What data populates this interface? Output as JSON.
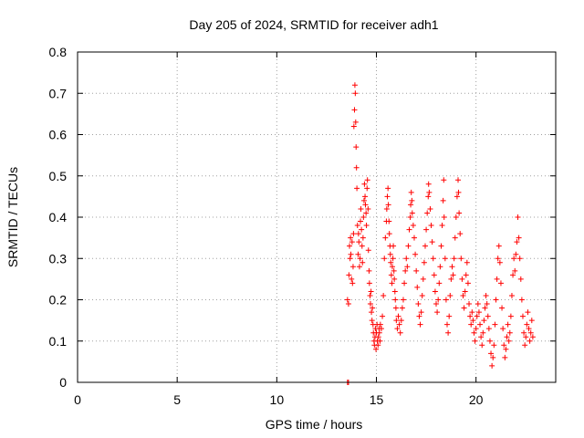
{
  "chart_data": {
    "type": "scatter",
    "title": "Day 205 of 2024, SRMTID for receiver adh1",
    "xlabel": "GPS time / hours",
    "ylabel": "SRMTID / TECUs",
    "xlim": [
      0,
      24
    ],
    "ylim": [
      0,
      0.8
    ],
    "xticks": [
      0,
      5,
      10,
      15,
      20
    ],
    "xtick_labels": [
      "0",
      "5",
      "10",
      "15",
      "20"
    ],
    "yticks": [
      0,
      0.1,
      0.2,
      0.3,
      0.4,
      0.5,
      0.6,
      0.7,
      0.8
    ],
    "ytick_labels": [
      "0",
      "0.1",
      "0.2",
      "0.3",
      "0.4",
      "0.5",
      "0.6",
      "0.7",
      "0.8"
    ],
    "grid": true,
    "marker": "plus",
    "color": "#ff0000",
    "series": [
      {
        "name": "SRMTID",
        "points": [
          [
            13.55,
            0.0
          ],
          [
            13.6,
            0.0
          ],
          [
            13.55,
            0.2
          ],
          [
            13.6,
            0.19
          ],
          [
            13.62,
            0.26
          ],
          [
            13.65,
            0.33
          ],
          [
            13.68,
            0.3
          ],
          [
            13.7,
            0.35
          ],
          [
            13.72,
            0.31
          ],
          [
            13.75,
            0.25
          ],
          [
            13.78,
            0.34
          ],
          [
            13.8,
            0.24
          ],
          [
            13.83,
            0.28
          ],
          [
            13.85,
            0.36
          ],
          [
            13.87,
            0.62
          ],
          [
            13.9,
            0.66
          ],
          [
            13.92,
            0.72
          ],
          [
            13.94,
            0.7
          ],
          [
            13.96,
            0.63
          ],
          [
            13.98,
            0.57
          ],
          [
            14.0,
            0.52
          ],
          [
            14.02,
            0.47
          ],
          [
            14.05,
            0.38
          ],
          [
            14.08,
            0.31
          ],
          [
            14.1,
            0.36
          ],
          [
            14.12,
            0.34
          ],
          [
            14.15,
            0.28
          ],
          [
            14.18,
            0.3
          ],
          [
            14.2,
            0.39
          ],
          [
            14.22,
            0.42
          ],
          [
            14.25,
            0.37
          ],
          [
            14.28,
            0.33
          ],
          [
            14.3,
            0.29
          ],
          [
            14.33,
            0.35
          ],
          [
            14.35,
            0.4
          ],
          [
            14.38,
            0.44
          ],
          [
            14.4,
            0.48
          ],
          [
            14.43,
            0.45
          ],
          [
            14.45,
            0.43
          ],
          [
            14.48,
            0.41
          ],
          [
            14.5,
            0.38
          ],
          [
            14.53,
            0.47
          ],
          [
            14.55,
            0.49
          ],
          [
            14.58,
            0.42
          ],
          [
            14.6,
            0.32
          ],
          [
            14.63,
            0.27
          ],
          [
            14.65,
            0.24
          ],
          [
            14.68,
            0.21
          ],
          [
            14.7,
            0.19
          ],
          [
            14.73,
            0.22
          ],
          [
            14.75,
            0.17
          ],
          [
            14.78,
            0.15
          ],
          [
            14.8,
            0.18
          ],
          [
            14.83,
            0.14
          ],
          [
            14.85,
            0.12
          ],
          [
            14.88,
            0.1
          ],
          [
            14.9,
            0.09
          ],
          [
            14.93,
            0.11
          ],
          [
            14.95,
            0.13
          ],
          [
            14.98,
            0.08
          ],
          [
            15.0,
            0.12
          ],
          [
            15.03,
            0.14
          ],
          [
            15.05,
            0.1
          ],
          [
            15.08,
            0.09
          ],
          [
            15.1,
            0.11
          ],
          [
            15.13,
            0.13
          ],
          [
            15.15,
            0.12
          ],
          [
            15.18,
            0.1
          ],
          [
            15.2,
            0.14
          ],
          [
            15.25,
            0.13
          ],
          [
            15.3,
            0.16
          ],
          [
            15.35,
            0.21
          ],
          [
            15.4,
            0.3
          ],
          [
            15.45,
            0.35
          ],
          [
            15.5,
            0.39
          ],
          [
            15.52,
            0.42
          ],
          [
            15.55,
            0.45
          ],
          [
            15.58,
            0.47
          ],
          [
            15.6,
            0.43
          ],
          [
            15.63,
            0.39
          ],
          [
            15.65,
            0.36
          ],
          [
            15.68,
            0.33
          ],
          [
            15.7,
            0.31
          ],
          [
            15.72,
            0.29
          ],
          [
            15.75,
            0.26
          ],
          [
            15.78,
            0.24
          ],
          [
            15.8,
            0.28
          ],
          [
            15.83,
            0.3
          ],
          [
            15.85,
            0.33
          ],
          [
            15.88,
            0.27
          ],
          [
            15.9,
            0.25
          ],
          [
            15.93,
            0.22
          ],
          [
            15.95,
            0.2
          ],
          [
            15.98,
            0.18
          ],
          [
            16.0,
            0.15
          ],
          [
            16.05,
            0.13
          ],
          [
            16.1,
            0.16
          ],
          [
            16.15,
            0.14
          ],
          [
            16.2,
            0.12
          ],
          [
            16.25,
            0.15
          ],
          [
            16.3,
            0.18
          ],
          [
            16.35,
            0.2
          ],
          [
            16.4,
            0.24
          ],
          [
            16.45,
            0.27
          ],
          [
            16.5,
            0.3
          ],
          [
            16.55,
            0.28
          ],
          [
            16.6,
            0.33
          ],
          [
            16.65,
            0.37
          ],
          [
            16.7,
            0.4
          ],
          [
            16.72,
            0.43
          ],
          [
            16.75,
            0.46
          ],
          [
            16.78,
            0.44
          ],
          [
            16.8,
            0.41
          ],
          [
            16.85,
            0.38
          ],
          [
            16.9,
            0.35
          ],
          [
            16.95,
            0.31
          ],
          [
            17.0,
            0.27
          ],
          [
            17.05,
            0.23
          ],
          [
            17.1,
            0.19
          ],
          [
            17.15,
            0.16
          ],
          [
            17.2,
            0.14
          ],
          [
            17.25,
            0.17
          ],
          [
            17.3,
            0.21
          ],
          [
            17.35,
            0.25
          ],
          [
            17.4,
            0.29
          ],
          [
            17.45,
            0.33
          ],
          [
            17.5,
            0.37
          ],
          [
            17.55,
            0.41
          ],
          [
            17.6,
            0.45
          ],
          [
            17.62,
            0.48
          ],
          [
            17.65,
            0.46
          ],
          [
            17.7,
            0.42
          ],
          [
            17.75,
            0.38
          ],
          [
            17.8,
            0.34
          ],
          [
            17.85,
            0.3
          ],
          [
            17.9,
            0.26
          ],
          [
            17.95,
            0.22
          ],
          [
            18.0,
            0.19
          ],
          [
            18.05,
            0.17
          ],
          [
            18.1,
            0.2
          ],
          [
            18.15,
            0.24
          ],
          [
            18.2,
            0.28
          ],
          [
            18.25,
            0.33
          ],
          [
            18.3,
            0.38
          ],
          [
            18.35,
            0.44
          ],
          [
            18.38,
            0.49
          ],
          [
            18.4,
            0.4
          ],
          [
            18.45,
            0.3
          ],
          [
            18.5,
            0.2
          ],
          [
            18.55,
            0.14
          ],
          [
            18.6,
            0.12
          ],
          [
            18.65,
            0.16
          ],
          [
            18.7,
            0.21
          ],
          [
            18.75,
            0.25
          ],
          [
            18.8,
            0.28
          ],
          [
            18.85,
            0.26
          ],
          [
            18.9,
            0.3
          ],
          [
            18.95,
            0.35
          ],
          [
            19.0,
            0.4
          ],
          [
            19.05,
            0.45
          ],
          [
            19.1,
            0.49
          ],
          [
            19.12,
            0.46
          ],
          [
            19.15,
            0.41
          ],
          [
            19.2,
            0.36
          ],
          [
            19.25,
            0.3
          ],
          [
            19.3,
            0.25
          ],
          [
            19.35,
            0.21
          ],
          [
            19.4,
            0.18
          ],
          [
            19.45,
            0.22
          ],
          [
            19.5,
            0.26
          ],
          [
            19.55,
            0.29
          ],
          [
            19.6,
            0.24
          ],
          [
            19.65,
            0.19
          ],
          [
            19.7,
            0.16
          ],
          [
            19.75,
            0.14
          ],
          [
            19.8,
            0.17
          ],
          [
            19.85,
            0.15
          ],
          [
            19.9,
            0.12
          ],
          [
            19.95,
            0.1
          ],
          [
            20.0,
            0.13
          ],
          [
            20.05,
            0.16
          ],
          [
            20.1,
            0.19
          ],
          [
            20.15,
            0.17
          ],
          [
            20.2,
            0.14
          ],
          [
            20.25,
            0.11
          ],
          [
            20.3,
            0.09
          ],
          [
            20.35,
            0.12
          ],
          [
            20.4,
            0.15
          ],
          [
            20.45,
            0.18
          ],
          [
            20.5,
            0.21
          ],
          [
            20.55,
            0.19
          ],
          [
            20.6,
            0.16
          ],
          [
            20.65,
            0.13
          ],
          [
            20.7,
            0.1
          ],
          [
            20.75,
            0.07
          ],
          [
            20.8,
            0.04
          ],
          [
            20.85,
            0.06
          ],
          [
            20.9,
            0.09
          ],
          [
            20.95,
            0.14
          ],
          [
            21.0,
            0.2
          ],
          [
            21.05,
            0.25
          ],
          [
            21.1,
            0.3
          ],
          [
            21.15,
            0.33
          ],
          [
            21.2,
            0.29
          ],
          [
            21.25,
            0.24
          ],
          [
            21.3,
            0.18
          ],
          [
            21.35,
            0.13
          ],
          [
            21.4,
            0.09
          ],
          [
            21.45,
            0.06
          ],
          [
            21.5,
            0.08
          ],
          [
            21.55,
            0.11
          ],
          [
            21.6,
            0.14
          ],
          [
            21.65,
            0.1
          ],
          [
            21.7,
            0.12
          ],
          [
            21.75,
            0.16
          ],
          [
            21.8,
            0.21
          ],
          [
            21.85,
            0.26
          ],
          [
            21.9,
            0.3
          ],
          [
            21.95,
            0.27
          ],
          [
            22.0,
            0.31
          ],
          [
            22.05,
            0.34
          ],
          [
            22.1,
            0.4
          ],
          [
            22.15,
            0.35
          ],
          [
            22.2,
            0.3
          ],
          [
            22.25,
            0.25
          ],
          [
            22.3,
            0.2
          ],
          [
            22.35,
            0.16
          ],
          [
            22.4,
            0.12
          ],
          [
            22.45,
            0.09
          ],
          [
            22.5,
            0.11
          ],
          [
            22.55,
            0.14
          ],
          [
            22.6,
            0.17
          ],
          [
            22.65,
            0.13
          ],
          [
            22.7,
            0.1
          ],
          [
            22.75,
            0.12
          ],
          [
            22.8,
            0.15
          ],
          [
            22.85,
            0.11
          ]
        ]
      }
    ]
  }
}
